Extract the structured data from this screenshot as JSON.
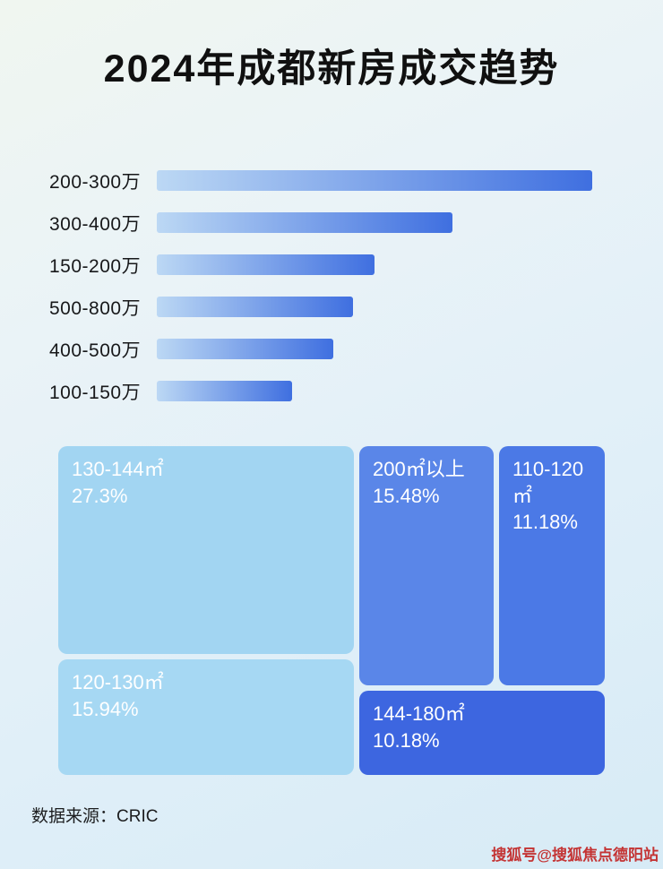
{
  "title": "2024年成都新房成交趋势",
  "chart_data": [
    {
      "type": "bar",
      "orientation": "horizontal",
      "title": "2024年成都新房成交趋势",
      "categories": [
        "200-300万",
        "300-400万",
        "150-200万",
        "500-800万",
        "400-500万",
        "100-150万"
      ],
      "values_pct_of_max": [
        100,
        68,
        50,
        45,
        40.5,
        31
      ],
      "axis_labels_shown": false,
      "bar_colors": [
        "#bcd8f4",
        "#3f6fe0"
      ]
    },
    {
      "type": "treemap",
      "blocks": [
        {
          "label": "130-144㎡",
          "value": 27.3,
          "value_label": "27.3%",
          "color": "#a2d5f2"
        },
        {
          "label": "200㎡以上",
          "value": 15.48,
          "value_label": "15.48%",
          "color": "#5a86e8"
        },
        {
          "label": "110-120㎡",
          "value": 11.18,
          "value_label": "11.18%",
          "color": "#4b79e6"
        },
        {
          "label": "120-130㎡",
          "value": 15.94,
          "value_label": "15.94%",
          "color": "#a6d8f3"
        },
        {
          "label": "144-180㎡",
          "value": 10.18,
          "value_label": "10.18%",
          "color": "#3d66e0"
        }
      ]
    }
  ],
  "footer": {
    "source": "数据来源：CRIC"
  },
  "watermark": {
    "text": "搜狐号@搜狐焦点德阳站"
  }
}
